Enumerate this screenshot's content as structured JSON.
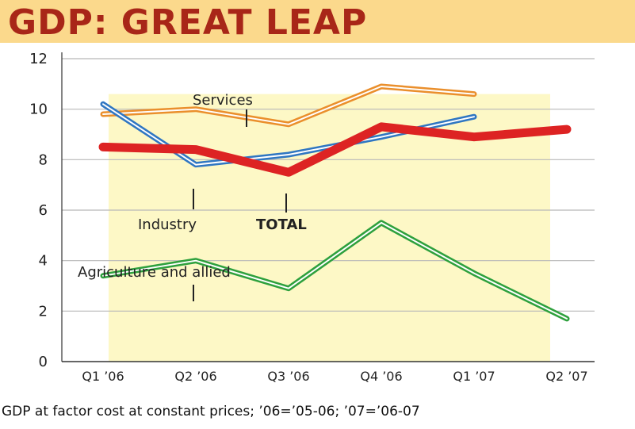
{
  "title": "GDP: GREAT LEAP",
  "footnote": "GDP at factor cost at constant prices; ’06=’05-06; ’07=’06-07",
  "colors": {
    "title": "#a82618",
    "title_band": "#fbd98c",
    "shaded_area": "#fdf8c6",
    "services": "#ea8f2c",
    "industry": "#2f76c2",
    "total": "#dd2323",
    "agriculture": "#2ea03d"
  },
  "chart_data": {
    "type": "line",
    "title": "GDP: GREAT LEAP",
    "xlabel": "",
    "ylabel": "",
    "ylim": [
      0,
      12
    ],
    "yticks": [
      "0",
      "2",
      "4",
      "6",
      "8",
      "10",
      "12"
    ],
    "categories": [
      "Q1 ’06",
      "Q2 ’06",
      "Q3 ’06",
      "Q4 ’06",
      "Q1 ’07",
      "Q2 ’07"
    ],
    "grid": true,
    "series": [
      {
        "name": "Services",
        "key": "services",
        "values": [
          9.8,
          10.0,
          9.4,
          10.9,
          10.6,
          null
        ]
      },
      {
        "name": "Industry",
        "key": "industry",
        "values": [
          10.2,
          7.8,
          8.2,
          8.9,
          9.7,
          null
        ]
      },
      {
        "name": "TOTAL",
        "key": "total",
        "values": [
          8.5,
          8.4,
          7.5,
          9.3,
          8.9,
          9.2
        ]
      },
      {
        "name": "Agriculture and allied",
        "key": "agriculture",
        "values": [
          3.4,
          4.0,
          2.9,
          5.5,
          3.5,
          1.7
        ]
      }
    ]
  }
}
